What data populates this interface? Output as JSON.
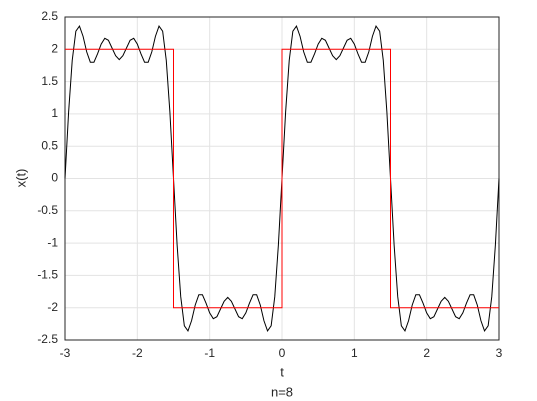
{
  "chart_data": {
    "type": "line",
    "xlabel": "t",
    "ylabel": "x(t)",
    "caption": "n=8",
    "xlim": [
      -3,
      3
    ],
    "ylim": [
      -2.5,
      2.5
    ],
    "xticks": [
      -3,
      -2,
      -1,
      0,
      1,
      2,
      3
    ],
    "yticks": [
      -2.5,
      -2,
      -1.5,
      -1,
      -0.5,
      0,
      0.5,
      1,
      1.5,
      2,
      2.5
    ],
    "grid": true,
    "series": [
      {
        "color": "#000000",
        "x": [
          -3,
          -2.95,
          -2.9,
          -2.85,
          -2.8,
          -2.75,
          -2.7,
          -2.65,
          -2.6,
          -2.55,
          -2.5,
          -2.45,
          -2.4,
          -2.35,
          -2.3,
          -2.25,
          -2.2,
          -2.15,
          -2.1,
          -2.05,
          -2,
          -1.95,
          -1.9,
          -1.85,
          -1.8,
          -1.75,
          -1.7,
          -1.65,
          -1.6,
          -1.55,
          -1.5,
          -1.45,
          -1.4,
          -1.35,
          -1.3,
          -1.25,
          -1.2,
          -1.15,
          -1.1,
          -1.05,
          -1,
          -0.95,
          -0.9,
          -0.85,
          -0.8,
          -0.75,
          -0.7,
          -0.65,
          -0.6,
          -0.55,
          -0.5,
          -0.45,
          -0.4,
          -0.35,
          -0.3,
          -0.25,
          -0.2,
          -0.15,
          -0.1,
          -0.05,
          0,
          0.05,
          0.1,
          0.15,
          0.2,
          0.25,
          0.3,
          0.35,
          0.4,
          0.45,
          0.5,
          0.55,
          0.6,
          0.65,
          0.7,
          0.75,
          0.8,
          0.85,
          0.9,
          0.95,
          1,
          1.05,
          1.1,
          1.15,
          1.2,
          1.25,
          1.3,
          1.35,
          1.4,
          1.45,
          1.5,
          1.55,
          1.6,
          1.65,
          1.7,
          1.75,
          1.8,
          1.85,
          1.9,
          1.95,
          2,
          2.05,
          2.1,
          2.15,
          2.2,
          2.25,
          2.3,
          2.35,
          2.4,
          2.45,
          2.5,
          2.55,
          2.6,
          2.65,
          2.7,
          2.75,
          2.8,
          2.85,
          2.9,
          2.95,
          3
        ],
        "values": [
          0,
          1.03,
          1.83,
          2.28,
          2.36,
          2.2,
          1.96,
          1.8,
          1.8,
          1.93,
          2.08,
          2.17,
          2.14,
          2.02,
          1.9,
          1.84,
          1.9,
          2.02,
          2.14,
          2.17,
          2.08,
          1.93,
          1.8,
          1.8,
          1.96,
          2.2,
          2.36,
          2.28,
          1.83,
          1.03,
          0,
          -1.03,
          -1.83,
          -2.28,
          -2.36,
          -2.2,
          -1.96,
          -1.8,
          -1.8,
          -1.93,
          -2.08,
          -2.17,
          -2.14,
          -2.02,
          -1.9,
          -1.84,
          -1.9,
          -2.02,
          -2.14,
          -2.17,
          -2.08,
          -1.93,
          -1.8,
          -1.8,
          -1.96,
          -2.2,
          -2.36,
          -2.28,
          -1.83,
          -1.03,
          0,
          1.03,
          1.83,
          2.28,
          2.36,
          2.2,
          1.96,
          1.8,
          1.8,
          1.93,
          2.08,
          2.17,
          2.14,
          2.02,
          1.9,
          1.84,
          1.9,
          2.02,
          2.14,
          2.17,
          2.08,
          1.93,
          1.8,
          1.8,
          1.96,
          2.2,
          2.36,
          2.28,
          1.83,
          1.03,
          0,
          -1.03,
          -1.83,
          -2.28,
          -2.36,
          -2.2,
          -1.96,
          -1.8,
          -1.8,
          -1.93,
          -2.08,
          -2.17,
          -2.14,
          -2.02,
          -1.9,
          -1.84,
          -1.9,
          -2.02,
          -2.14,
          -2.17,
          -2.08,
          -1.93,
          -1.8,
          -1.8,
          -1.96,
          -2.2,
          -2.36,
          -2.28,
          -1.83,
          -1.03,
          0
        ]
      },
      {
        "color": "#ff0000",
        "x": [
          -3,
          -1.5,
          -1.5,
          0,
          0,
          1.5,
          1.5,
          3
        ],
        "values": [
          2,
          2,
          -2,
          -2,
          2,
          2,
          -2,
          -2
        ]
      }
    ]
  }
}
